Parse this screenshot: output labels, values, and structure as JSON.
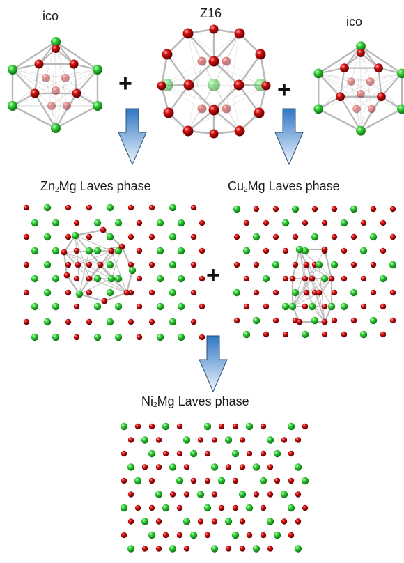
{
  "labels": {
    "ico_left": "ico",
    "z16": "Z16",
    "ico_right": "ico",
    "zn_el": "Zn",
    "zn_sub": "2",
    "zn_rest": "Mg Laves phase",
    "cu_el": "Cu",
    "cu_sub": "2",
    "cu_rest": "Mg Laves phase",
    "ni_el": "Ni",
    "ni_sub": "2",
    "ni_rest": "Mg Laves phase",
    "plus": "+"
  },
  "colors": {
    "green_atom": "#1fbf2a",
    "red_atom": "#c00000",
    "bond": "#b8b8b8",
    "arrow_top": "#2f76c4",
    "arrow_bottom": "#e8f1fb",
    "arrow_stroke": "#2b4f7a"
  }
}
